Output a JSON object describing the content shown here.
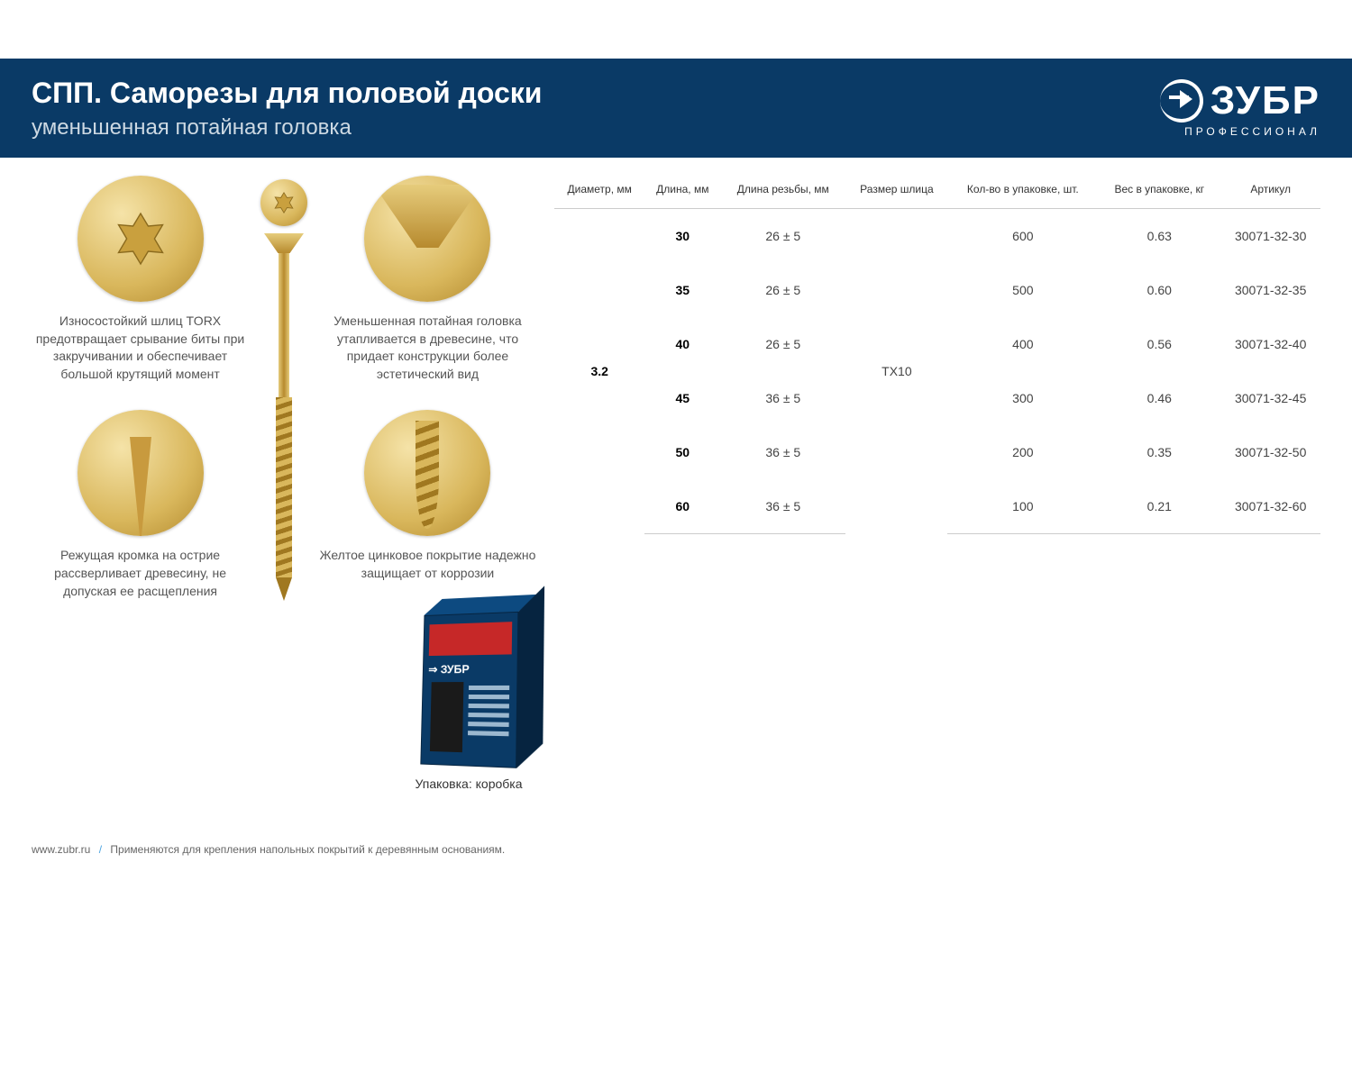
{
  "header": {
    "title": "СПП. Саморезы для половой доски",
    "subtitle": "уменьшенная потайная головка"
  },
  "brand": {
    "name": "ЗУБР",
    "tagline": "ПРОФЕССИОНАЛ"
  },
  "features": {
    "torx": "Износостойкий шлиц TORX предотвращает срывание биты при закручивании и обеспечивает большой крутящий момент",
    "tip": "Режущая кромка на острие рассверливает древесину, не допуская ее расщепления",
    "head": "Уменьшенная потайная головка утапливается в древесине, что придает конструкции более эстетический вид",
    "coating": "Желтое цинковое покрытие надежно защищает от коррозии"
  },
  "package_label": "Упаковка: коробка",
  "table": {
    "columns": [
      "Диаметр, мм",
      "Длина, мм",
      "Длина резьбы, мм",
      "Размер шлица",
      "Кол-во в упаковке, шт.",
      "Вес в упаковке, кг",
      "Артикул"
    ],
    "diameter": "3.2",
    "slot": "TX10",
    "rows": [
      {
        "length": "30",
        "thread": "26 ± 5",
        "qty": "600",
        "weight": "0.63",
        "sku": "30071-32-30"
      },
      {
        "length": "35",
        "thread": "26 ± 5",
        "qty": "500",
        "weight": "0.60",
        "sku": "30071-32-35"
      },
      {
        "length": "40",
        "thread": "26 ± 5",
        "qty": "400",
        "weight": "0.56",
        "sku": "30071-32-40"
      },
      {
        "length": "45",
        "thread": "36 ± 5",
        "qty": "300",
        "weight": "0.46",
        "sku": "30071-32-45"
      },
      {
        "length": "50",
        "thread": "36 ± 5",
        "qty": "200",
        "weight": "0.35",
        "sku": "30071-32-50"
      },
      {
        "length": "60",
        "thread": "36 ± 5",
        "qty": "100",
        "weight": "0.21",
        "sku": "30071-32-60"
      }
    ]
  },
  "footer": {
    "site": "www.zubr.ru",
    "note": "Применяются для крепления напольных покрытий к деревянным основаниям."
  },
  "colors": {
    "band": "#0a3a66",
    "screw_light": "#e6cc7c",
    "screw_dark": "#b78a2e",
    "box_front": "#0a3a66",
    "box_red": "#c62828"
  }
}
